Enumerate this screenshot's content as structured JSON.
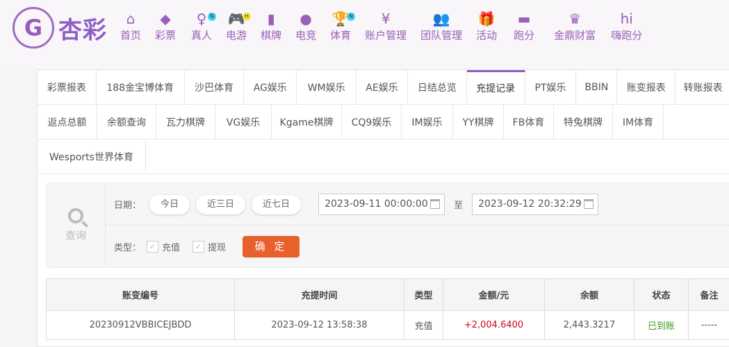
{
  "brand": {
    "name": "杏彩"
  },
  "nav": [
    {
      "label": "首页",
      "icon": "home-icon"
    },
    {
      "label": "彩票",
      "icon": "lottery-icon"
    },
    {
      "label": "真人",
      "icon": "live-dealer-icon",
      "badge": "N"
    },
    {
      "label": "电游",
      "icon": "gamepad-icon",
      "badge": "H"
    },
    {
      "label": "棋牌",
      "icon": "cards-icon"
    },
    {
      "label": "电竞",
      "icon": "esports-icon"
    },
    {
      "label": "体育",
      "icon": "trophy-icon",
      "badge": "N"
    },
    {
      "label": "账户管理",
      "icon": "yen-icon"
    },
    {
      "label": "团队管理",
      "icon": "team-icon"
    },
    {
      "label": "活动",
      "icon": "gift-icon"
    },
    {
      "label": "跑分",
      "icon": "rhino-icon"
    },
    {
      "label": "金鼎财富",
      "icon": "wealth-icon"
    },
    {
      "label": "嗨跑分",
      "icon": "hi-icon"
    }
  ],
  "tabs": [
    [
      "彩票报表",
      "188金宝博体育",
      "沙巴体育",
      "AG娱乐",
      "WM娱乐",
      "AE娱乐",
      "日结总览",
      "充提记录",
      "PT娱乐",
      "BBIN",
      "账变报表",
      "转账报表"
    ],
    [
      "返点总额",
      "余额查询",
      "瓦力棋牌",
      "VG娱乐",
      "Kgame棋牌",
      "CQ9娱乐",
      "IM娱乐",
      "YY棋牌",
      "FB体育",
      "特兔棋牌",
      "IM体育"
    ],
    [
      "Wesports世界体育"
    ]
  ],
  "active_tab": "充提记录",
  "filter": {
    "search_label": "查询",
    "date_label": "日期：",
    "quick": [
      "今日",
      "近三日",
      "近七日"
    ],
    "start": "2023-09-11 00:00:00",
    "to": "至",
    "end": "2023-09-12 20:32:29",
    "type_label": "类型：",
    "types": [
      {
        "label": "充值",
        "checked": true
      },
      {
        "label": "提现",
        "checked": true
      }
    ],
    "confirm": "确 定"
  },
  "table": {
    "headers": [
      "账变编号",
      "充提时间",
      "类型",
      "金额/元",
      "余额",
      "状态",
      "备注"
    ],
    "rows": [
      [
        "20230912VBBICEJBDD",
        "2023-09-12 13:58:38",
        "充值",
        "+2,004.6400",
        "2,443.3217",
        "已到账",
        "-----"
      ]
    ]
  },
  "colors": {
    "accent": "#8e5ec4",
    "amount": "#d0021b",
    "status": "#3a9a1a",
    "confirm": "#e8602c"
  }
}
